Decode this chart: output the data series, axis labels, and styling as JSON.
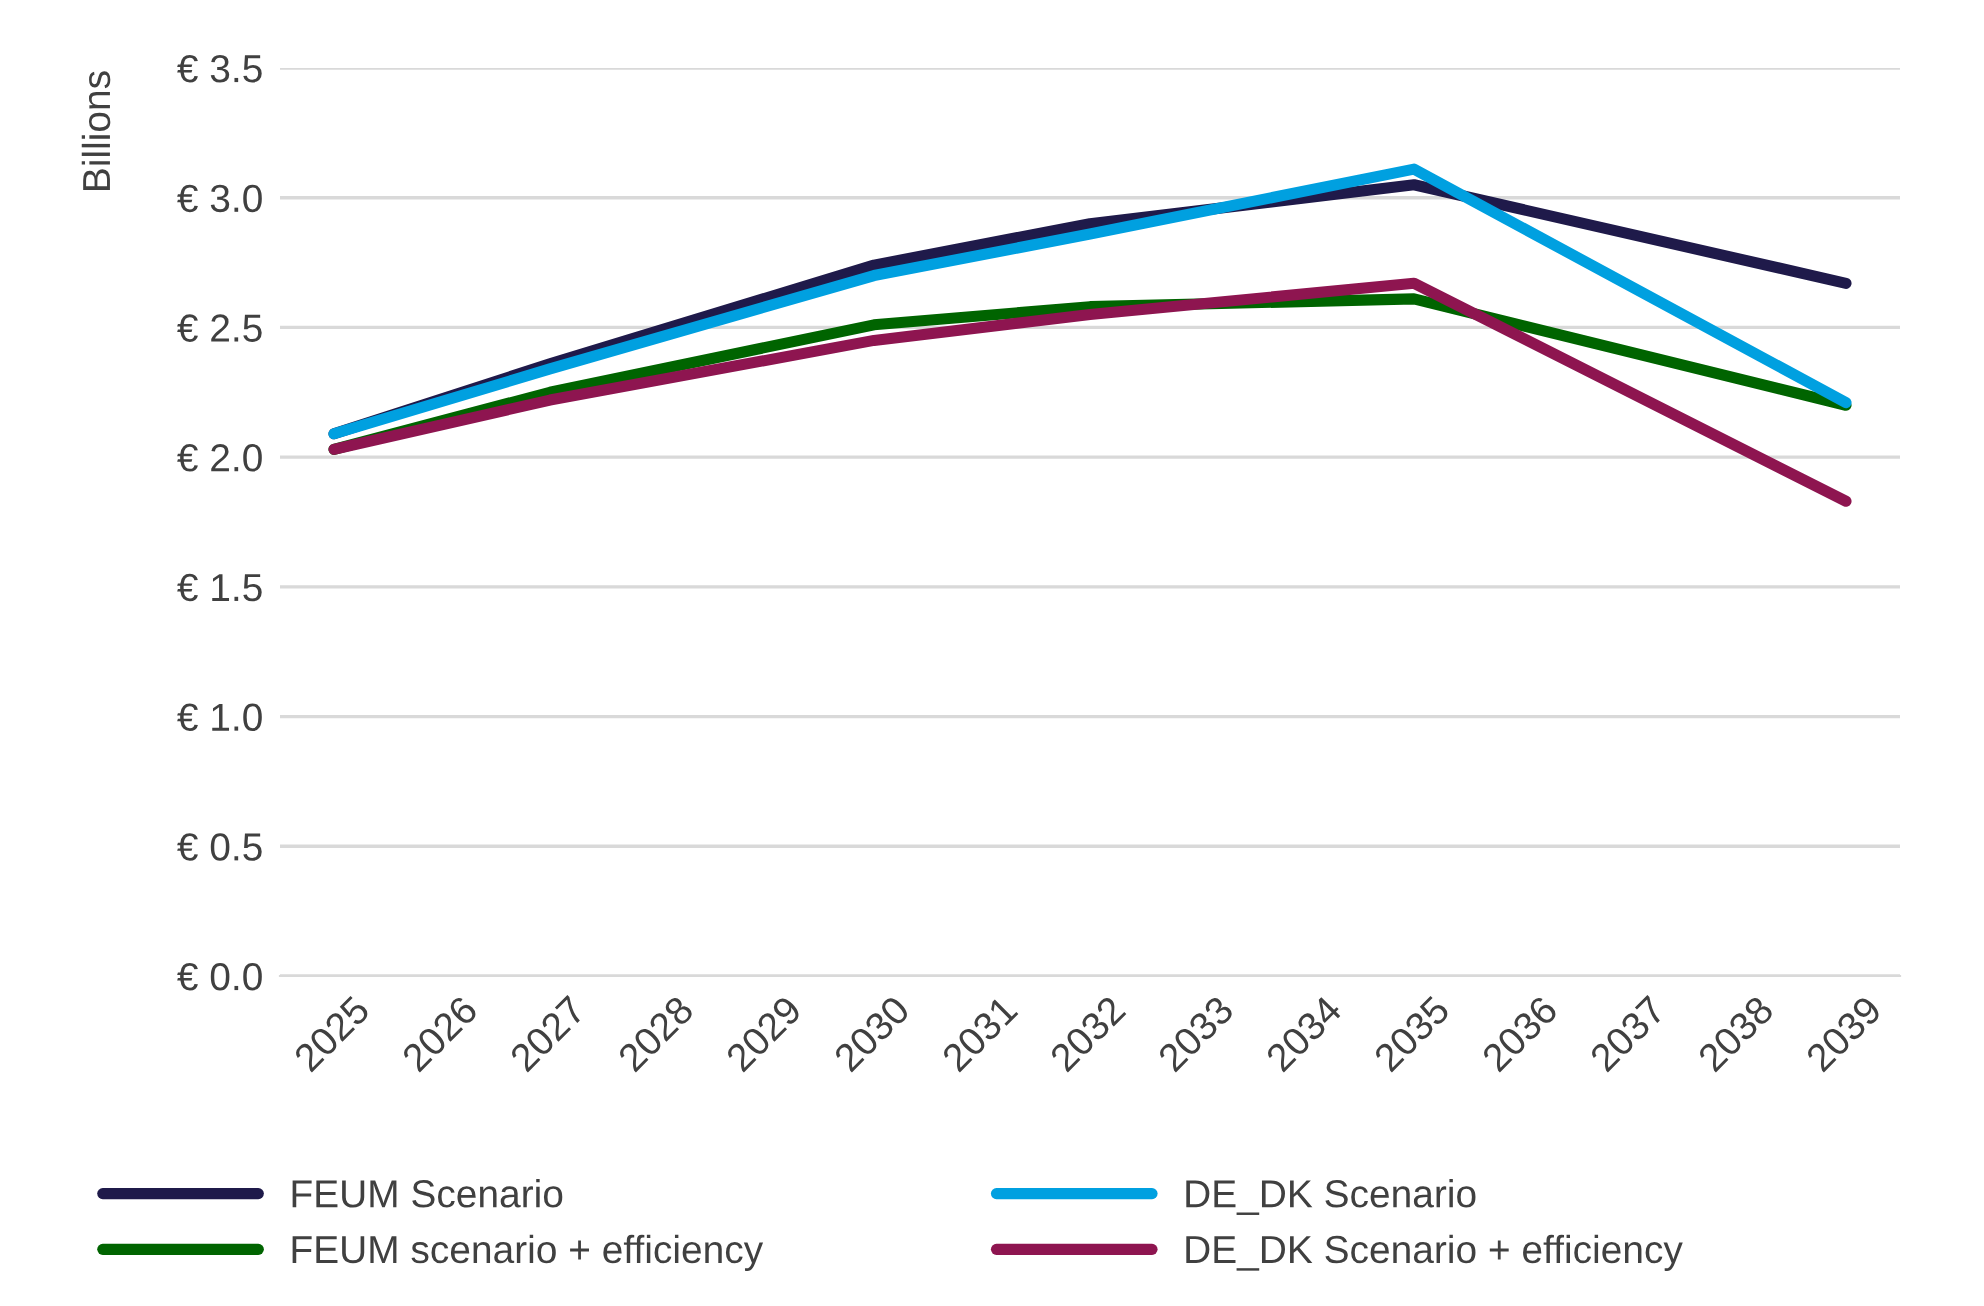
{
  "chart_data": {
    "type": "line",
    "ylabel": "Billions",
    "xlim": [
      2024.5,
      2039.5
    ],
    "xticks": [
      2025,
      2026,
      2027,
      2028,
      2029,
      2030,
      2031,
      2032,
      2033,
      2034,
      2035,
      2036,
      2037,
      2038,
      2039
    ],
    "ylim": [
      0,
      3.5
    ],
    "yticks": [
      {
        "value": 0,
        "label": "€ 0.0"
      },
      {
        "value": 0.5,
        "label": "€ 0.5"
      },
      {
        "value": 1,
        "label": "€ 1.0"
      },
      {
        "value": 1.5,
        "label": "€ 1.5"
      },
      {
        "value": 2,
        "label": "€ 2.0"
      },
      {
        "value": 2.5,
        "label": "€ 2.5"
      },
      {
        "value": 3,
        "label": "€ 3.0"
      },
      {
        "value": 3.5,
        "label": "€ 3.5"
      }
    ],
    "grid": "y",
    "legend": "bottom",
    "line_style": "solid",
    "marker": "none",
    "series": [
      {
        "name": "FEUM Scenario",
        "color": "#1f1a4a",
        "x": [
          2025,
          2027,
          2030,
          2032,
          2035,
          2039
        ],
        "values": [
          2.09,
          2.36,
          2.74,
          2.9,
          3.05,
          2.67
        ]
      },
      {
        "name": "FEUM scenario + efficiency",
        "color": "#006400",
        "x": [
          2025,
          2027,
          2030,
          2032,
          2035,
          2039
        ],
        "values": [
          2.03,
          2.25,
          2.51,
          2.58,
          2.61,
          2.2
        ]
      },
      {
        "name": "DE_DK Scenario",
        "color": "#00a0e0",
        "x": [
          2025,
          2027,
          2030,
          2032,
          2035,
          2039
        ],
        "values": [
          2.09,
          2.34,
          2.7,
          2.86,
          3.11,
          2.21
        ]
      },
      {
        "name": "DE_DK Scenario + efficiency",
        "color": "#8e1550",
        "x": [
          2025,
          2027,
          2030,
          2032,
          2035,
          2039
        ],
        "values": [
          2.03,
          2.22,
          2.45,
          2.55,
          2.67,
          1.83
        ]
      }
    ]
  }
}
